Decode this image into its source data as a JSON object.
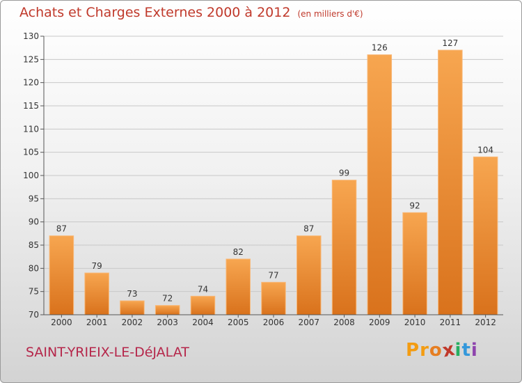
{
  "chart_data": {
    "type": "bar",
    "title": "Achats et Charges Externes 2000 à 2012",
    "subtitle": "(en milliers d'€)",
    "categories": [
      "2000",
      "2001",
      "2002",
      "2003",
      "2004",
      "2005",
      "2006",
      "2007",
      "2008",
      "2009",
      "2010",
      "2011",
      "2012"
    ],
    "values": [
      87,
      79,
      73,
      72,
      74,
      82,
      77,
      87,
      99,
      126,
      92,
      127,
      104
    ],
    "ylim": [
      70,
      130
    ],
    "yticks": [
      70,
      75,
      80,
      85,
      90,
      95,
      100,
      105,
      110,
      115,
      120,
      125,
      130
    ],
    "grid": true,
    "bar_color": "#f0963a"
  },
  "commune_name": "SAINT-YRIEIX-LE-DéJALAT",
  "logo": {
    "text": "Proxiti",
    "letter_colors": [
      "#f39c12",
      "#f39c12",
      "#e67e22",
      "#c0392b",
      "#27ae60",
      "#3498db",
      "#8e44ad"
    ]
  }
}
